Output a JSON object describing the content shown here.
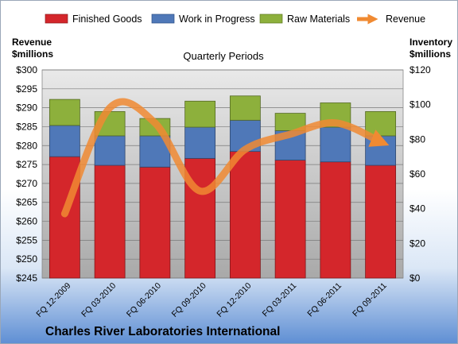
{
  "chart_data": {
    "type": "bar",
    "title": "Quarterly Periods",
    "footer_title": "Charles River Laboratories International",
    "left_axis_label": [
      "Revenue",
      "$millions"
    ],
    "right_axis_label": [
      "Inventory",
      "$millions"
    ],
    "categories": [
      "FQ 12-2009",
      "FQ 03-2010",
      "FQ 06-2010",
      "FQ 09-2010",
      "FQ 12-2010",
      "FQ 03-2011",
      "FQ 06-2011",
      "FQ 09-2011"
    ],
    "stacked": true,
    "bar_axis": "right",
    "series": [
      {
        "name": "Finished Goods",
        "color": "#d4262b",
        "values": [
          70,
          65,
          64,
          69,
          73,
          68,
          67,
          65
        ]
      },
      {
        "name": "Work in Progress",
        "color": "#4f78b8",
        "values": [
          18,
          17,
          18,
          18,
          18,
          17,
          20,
          17
        ]
      },
      {
        "name": "Raw Materials",
        "color": "#8db03c",
        "values": [
          15,
          14,
          10,
          15,
          14,
          10,
          14,
          14
        ]
      }
    ],
    "line_series": {
      "name": "Revenue",
      "color": "#f08a32",
      "axis": "left",
      "values": [
        262,
        290,
        286,
        268,
        279,
        283,
        286,
        281
      ]
    },
    "left_axis": {
      "min": 245,
      "max": 300,
      "step": 5,
      "tick_labels": [
        "$245",
        "$250",
        "$255",
        "$260",
        "$265",
        "$270",
        "$275",
        "$280",
        "$285",
        "$290",
        "$295",
        "$300"
      ]
    },
    "right_axis": {
      "min": 0,
      "max": 120,
      "step": 20,
      "tick_labels": [
        "$0",
        "$20",
        "$40",
        "$60",
        "$80",
        "$100",
        "$120"
      ]
    },
    "grid": true,
    "legend_position": "top"
  }
}
